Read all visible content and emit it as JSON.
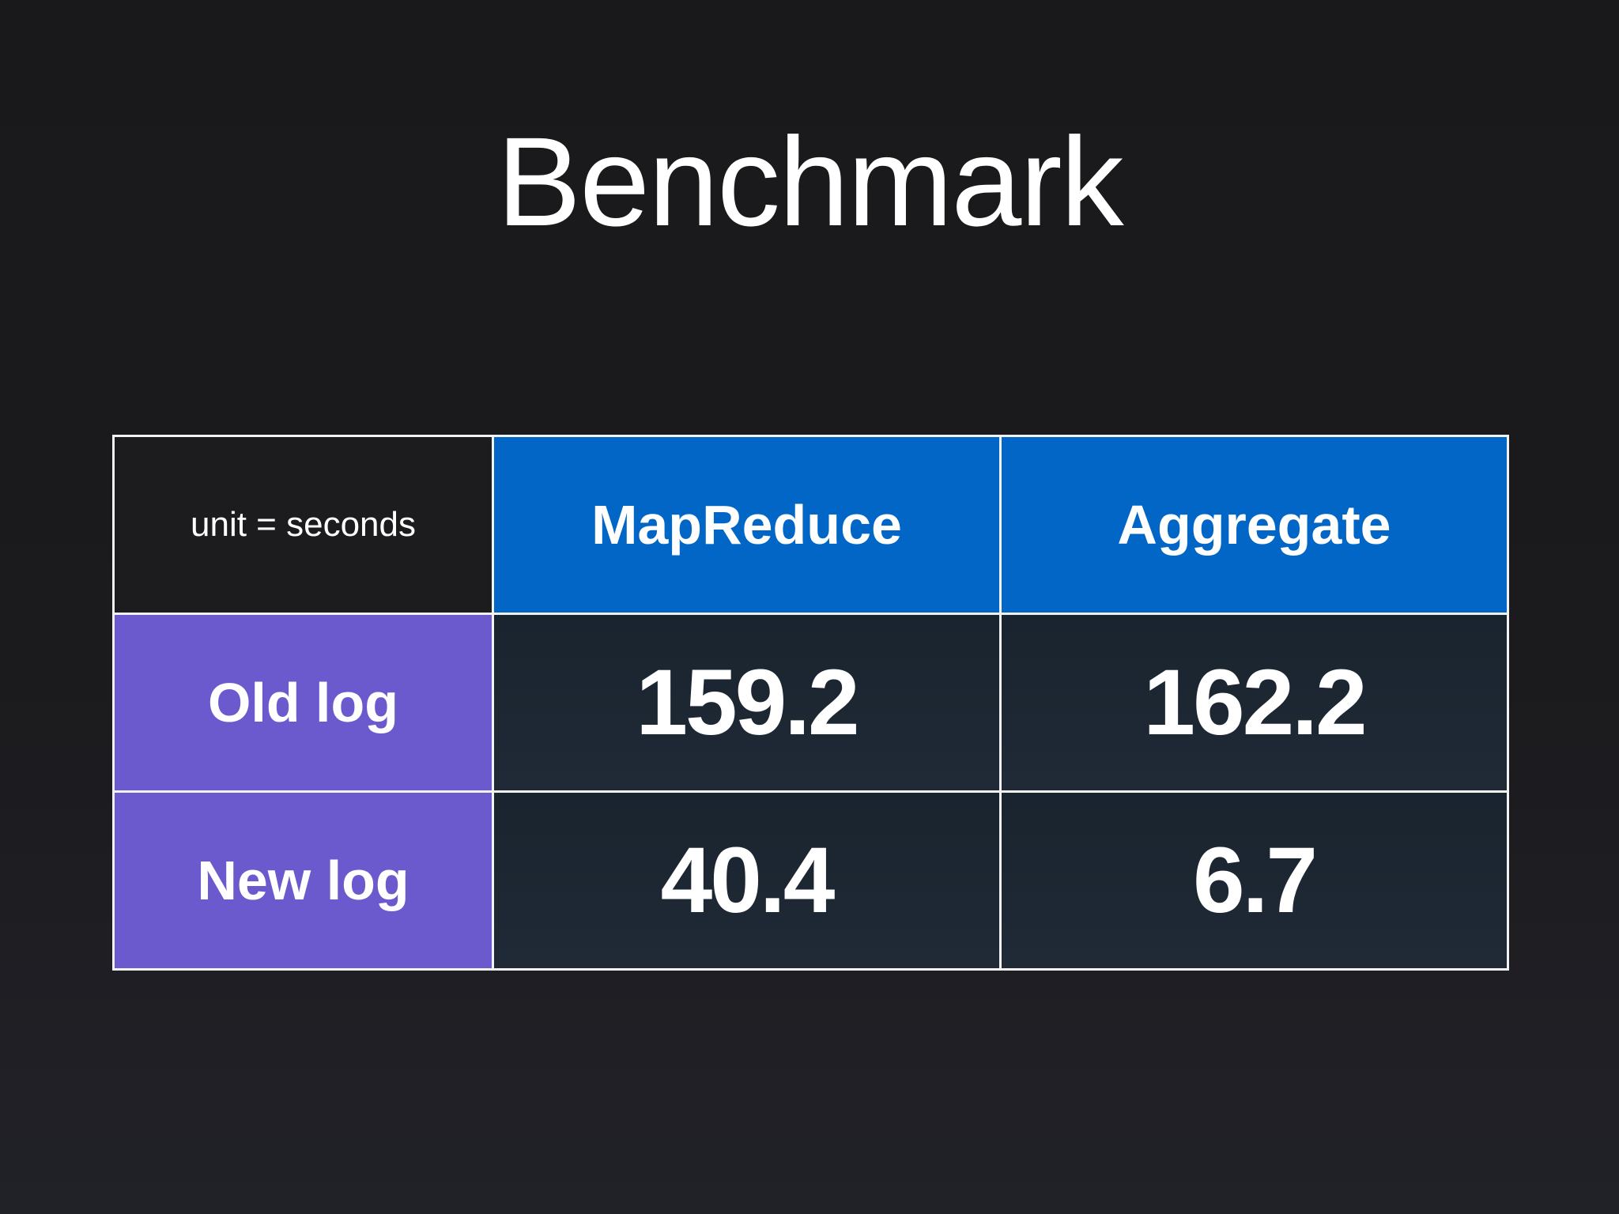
{
  "slide": {
    "title": "Benchmark"
  },
  "colors": {
    "background": "#1b1b1e",
    "header_col_bg": "#0166c6",
    "header_row_bg": "#6b5acd",
    "value_cell_bg_top": "#1a242f",
    "value_cell_bg_bottom": "#1f2a36",
    "grid_line": "#f2f2f2",
    "text": "#ffffff"
  },
  "chart_data": {
    "type": "table",
    "corner_label": "unit = seconds",
    "columns": [
      "MapReduce",
      "Aggregate"
    ],
    "rows": [
      {
        "label": "Old log",
        "values": [
          "159.2",
          "162.2"
        ]
      },
      {
        "label": "New log",
        "values": [
          "40.4",
          "6.7"
        ]
      }
    ]
  }
}
